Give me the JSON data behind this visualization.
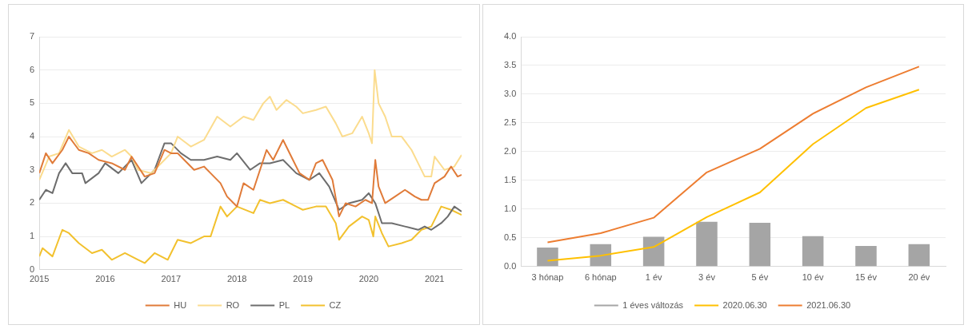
{
  "chart_data": [
    {
      "type": "line",
      "xlim": [
        2015,
        2021.41
      ],
      "xticks": [
        2015,
        2016,
        2017,
        2018,
        2019,
        2020,
        2021
      ],
      "ylim": [
        0,
        7
      ],
      "yticks": [
        0,
        1,
        2,
        3,
        4,
        5,
        6,
        7
      ],
      "grid": "y",
      "legend": "bottom",
      "marker": "none",
      "series": [
        {
          "name": "HU",
          "color": "#e07b39",
          "x": [
            2015.0,
            2015.1,
            2015.2,
            2015.35,
            2015.45,
            2015.6,
            2015.75,
            2015.9,
            2016.1,
            2016.3,
            2016.4,
            2016.5,
            2016.6,
            2016.75,
            2016.9,
            2017.0,
            2017.1,
            2017.2,
            2017.35,
            2017.5,
            2017.6,
            2017.75,
            2017.85,
            2017.95,
            2018.0,
            2018.1,
            2018.25,
            2018.35,
            2018.45,
            2018.55,
            2018.7,
            2018.85,
            2018.95,
            2019.1,
            2019.2,
            2019.3,
            2019.45,
            2019.55,
            2019.65,
            2019.8,
            2019.95,
            2020.05,
            2020.1,
            2020.15,
            2020.25,
            2020.4,
            2020.55,
            2020.7,
            2020.8,
            2020.9,
            2021.0,
            2021.15,
            2021.25,
            2021.35,
            2021.41
          ],
          "values": [
            2.9,
            3.5,
            3.2,
            3.6,
            4.0,
            3.6,
            3.5,
            3.3,
            3.2,
            3.0,
            3.4,
            3.1,
            2.8,
            2.9,
            3.6,
            3.5,
            3.5,
            3.3,
            3.0,
            3.1,
            2.9,
            2.6,
            2.2,
            2.0,
            1.9,
            2.6,
            2.4,
            3.0,
            3.6,
            3.3,
            3.9,
            3.3,
            2.9,
            2.7,
            3.2,
            3.3,
            2.7,
            1.6,
            2.0,
            1.9,
            2.1,
            2.0,
            3.3,
            2.5,
            2.0,
            2.2,
            2.4,
            2.2,
            2.1,
            2.1,
            2.6,
            2.8,
            3.1,
            2.8,
            2.85
          ]
        },
        {
          "name": "RO",
          "color": "#fbdc8e",
          "x": [
            2015.0,
            2015.15,
            2015.3,
            2015.45,
            2015.6,
            2015.8,
            2015.95,
            2016.1,
            2016.3,
            2016.4,
            2016.5,
            2016.7,
            2016.9,
            2017.0,
            2017.1,
            2017.3,
            2017.5,
            2017.7,
            2017.9,
            2018.1,
            2018.25,
            2018.4,
            2018.5,
            2018.6,
            2018.75,
            2018.9,
            2019.0,
            2019.2,
            2019.35,
            2019.5,
            2019.6,
            2019.75,
            2019.9,
            2020.0,
            2020.05,
            2020.09,
            2020.15,
            2020.25,
            2020.35,
            2020.5,
            2020.65,
            2020.75,
            2020.85,
            2020.95,
            2021.0,
            2021.15,
            2021.3,
            2021.41
          ],
          "values": [
            2.7,
            3.4,
            3.5,
            4.2,
            3.7,
            3.5,
            3.6,
            3.4,
            3.6,
            3.4,
            3.0,
            2.9,
            3.3,
            3.5,
            4.0,
            3.7,
            3.9,
            4.6,
            4.3,
            4.6,
            4.5,
            5.0,
            5.2,
            4.8,
            5.1,
            4.9,
            4.7,
            4.8,
            4.9,
            4.4,
            4.0,
            4.1,
            4.6,
            4.1,
            3.8,
            6.0,
            5.0,
            4.6,
            4.0,
            4.0,
            3.6,
            3.2,
            2.8,
            2.8,
            3.4,
            3.0,
            3.1,
            3.45
          ]
        },
        {
          "name": "PL",
          "color": "#6d6d6d",
          "x": [
            2015.0,
            2015.1,
            2015.2,
            2015.3,
            2015.4,
            2015.5,
            2015.65,
            2015.7,
            2015.9,
            2016.0,
            2016.2,
            2016.4,
            2016.55,
            2016.75,
            2016.9,
            2017.0,
            2017.15,
            2017.3,
            2017.5,
            2017.7,
            2017.9,
            2018.0,
            2018.2,
            2018.35,
            2018.5,
            2018.7,
            2018.9,
            2019.1,
            2019.25,
            2019.4,
            2019.55,
            2019.7,
            2019.9,
            2020.0,
            2020.1,
            2020.2,
            2020.35,
            2020.55,
            2020.75,
            2020.85,
            2020.95,
            2021.1,
            2021.2,
            2021.3,
            2021.41
          ],
          "values": [
            2.1,
            2.4,
            2.3,
            2.9,
            3.2,
            2.9,
            2.9,
            2.6,
            2.9,
            3.2,
            2.9,
            3.3,
            2.6,
            3.0,
            3.8,
            3.8,
            3.5,
            3.3,
            3.3,
            3.4,
            3.3,
            3.5,
            3.0,
            3.2,
            3.2,
            3.3,
            2.9,
            2.7,
            2.9,
            2.5,
            1.8,
            2.0,
            2.1,
            2.3,
            2.0,
            1.4,
            1.4,
            1.3,
            1.2,
            1.3,
            1.2,
            1.4,
            1.6,
            1.9,
            1.75
          ]
        },
        {
          "name": "CZ",
          "color": "#f2c12e",
          "x": [
            2015.0,
            2015.05,
            2015.2,
            2015.35,
            2015.45,
            2015.6,
            2015.8,
            2015.95,
            2016.1,
            2016.3,
            2016.5,
            2016.6,
            2016.75,
            2016.95,
            2017.1,
            2017.3,
            2017.5,
            2017.6,
            2017.75,
            2017.85,
            2018.0,
            2018.25,
            2018.35,
            2018.5,
            2018.7,
            2018.9,
            2019.0,
            2019.2,
            2019.35,
            2019.5,
            2019.55,
            2019.7,
            2019.9,
            2020.0,
            2020.07,
            2020.1,
            2020.2,
            2020.3,
            2020.5,
            2020.65,
            2020.8,
            2020.95,
            2021.1,
            2021.25,
            2021.41
          ],
          "values": [
            0.4,
            0.65,
            0.4,
            1.2,
            1.1,
            0.8,
            0.5,
            0.6,
            0.3,
            0.5,
            0.3,
            0.2,
            0.5,
            0.3,
            0.9,
            0.8,
            1.0,
            1.0,
            1.9,
            1.6,
            1.9,
            1.7,
            2.1,
            2.0,
            2.1,
            1.9,
            1.8,
            1.9,
            1.9,
            1.4,
            0.9,
            1.3,
            1.6,
            1.5,
            1.0,
            1.6,
            1.1,
            0.7,
            0.8,
            0.9,
            1.2,
            1.3,
            1.9,
            1.8,
            1.65
          ]
        }
      ]
    },
    {
      "type": "bar",
      "categories": [
        "3 hónap",
        "6 hónap",
        "1 év",
        "3 év",
        "5 év",
        "10 év",
        "15 év",
        "20 év"
      ],
      "ylim": [
        0,
        4
      ],
      "yticks": [
        {
          "value": 0,
          "label": "0.0"
        },
        {
          "value": 0.5,
          "label": "0.5"
        },
        {
          "value": 1,
          "label": "1.0"
        },
        {
          "value": 1.5,
          "label": "1.5"
        },
        {
          "value": 2,
          "label": "2.0"
        },
        {
          "value": 2.5,
          "label": "2.5"
        },
        {
          "value": 3,
          "label": "3.0"
        },
        {
          "value": 3.5,
          "label": "3.5"
        },
        {
          "value": 4,
          "label": "4.0"
        }
      ],
      "grid": "y",
      "legend": "bottom",
      "marker": "none",
      "series": [
        {
          "name": "1 éves változás",
          "color": "#a5a5a5",
          "values": [
            0.33,
            0.39,
            0.52,
            0.78,
            0.76,
            0.53,
            0.36,
            0.39
          ]
        },
        {
          "name": "2020.06.30",
          "type": "line",
          "color": "#ffc000",
          "values": [
            0.1,
            0.19,
            0.34,
            0.86,
            1.29,
            2.13,
            2.76,
            3.08
          ]
        },
        {
          "name": "2021.06.30",
          "type": "line",
          "color": "#ed7d31",
          "values": [
            0.42,
            0.58,
            0.85,
            1.64,
            2.05,
            2.66,
            3.12,
            3.48
          ]
        }
      ]
    }
  ]
}
